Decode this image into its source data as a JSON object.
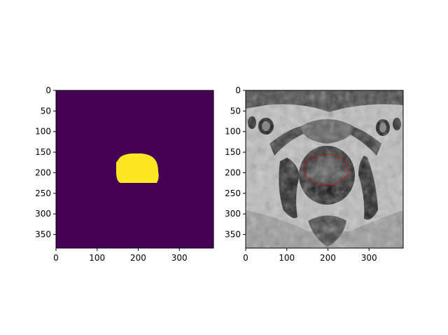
{
  "chart_data": [
    {
      "type": "image",
      "colormap": "viridis",
      "title": "",
      "xlabel": "",
      "ylabel": "",
      "xlim": [
        0,
        383
      ],
      "ylim": [
        383,
        0
      ],
      "x_ticks": [
        0,
        100,
        200,
        300
      ],
      "y_ticks": [
        0,
        50,
        100,
        150,
        200,
        250,
        300,
        350
      ],
      "background_color": "#440154",
      "mask_color": "#fde725",
      "mask_label_value": 1
    },
    {
      "type": "image",
      "colormap": "gray",
      "title": "",
      "xlabel": "",
      "ylabel": "",
      "xlim": [
        0,
        383
      ],
      "ylim": [
        383,
        0
      ],
      "x_ticks": [
        0,
        100,
        200,
        300
      ],
      "y_ticks": [
        0,
        50,
        100,
        150,
        200,
        250,
        300,
        350
      ],
      "contour_color": "#ff0000",
      "contour_style": "dashed"
    }
  ]
}
